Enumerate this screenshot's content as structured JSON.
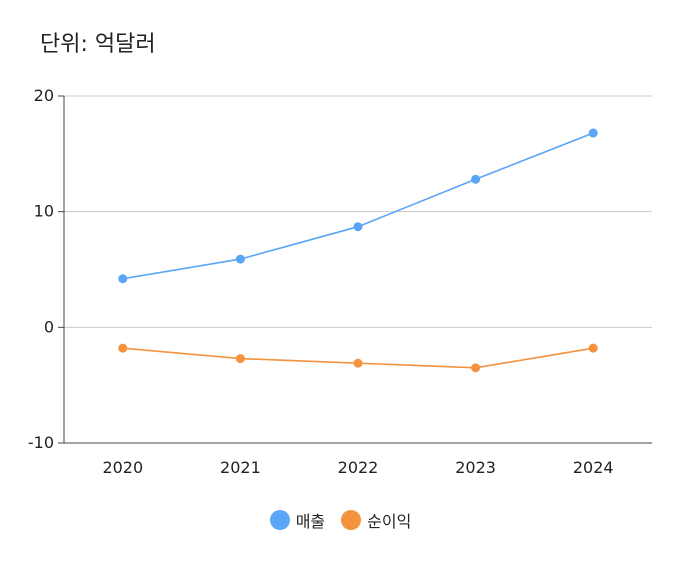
{
  "unit_label": "단위: 억달러",
  "chart_data": {
    "type": "line",
    "title": "",
    "xlabel": "",
    "ylabel": "",
    "x": [
      "2020",
      "2021",
      "2022",
      "2023",
      "2024"
    ],
    "ylim": [
      -10,
      20
    ],
    "yticks": [
      -10,
      0,
      10,
      20
    ],
    "grid": true,
    "legend_position": "bottom",
    "series": [
      {
        "name": "매출",
        "color": "#5aa5f5",
        "values": [
          4.2,
          5.9,
          8.7,
          12.8,
          16.8
        ]
      },
      {
        "name": "순이익",
        "color": "#f5923e",
        "values": [
          -1.8,
          -2.7,
          -3.1,
          -3.5,
          -1.8
        ]
      }
    ]
  }
}
